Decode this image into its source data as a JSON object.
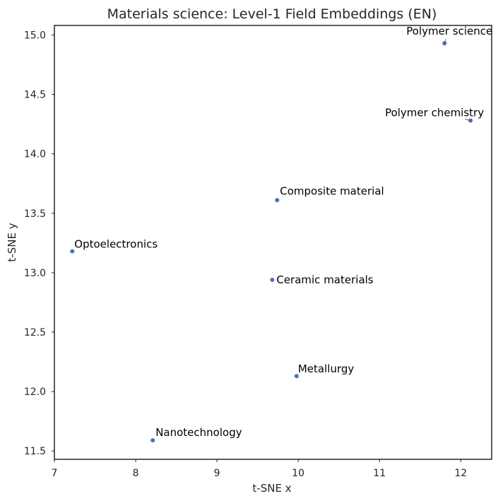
{
  "chart_data": {
    "type": "scatter",
    "title": "Materials science: Level-1 Field Embeddings (EN)",
    "xlabel": "t-SNE x",
    "ylabel": "t-SNE y",
    "xlim": [
      7.0,
      12.38
    ],
    "ylim": [
      11.43,
      15.08
    ],
    "xticks": [
      7,
      8,
      9,
      10,
      11,
      12
    ],
    "yticks": [
      11.5,
      12.0,
      12.5,
      13.0,
      13.5,
      14.0,
      14.5,
      15.0
    ],
    "xtick_labels": [
      "7",
      "8",
      "9",
      "10",
      "11",
      "12"
    ],
    "ytick_labels": [
      "11.5",
      "12.0",
      "12.5",
      "13.0",
      "13.5",
      "14.0",
      "14.5",
      "15.0"
    ],
    "grid": false,
    "point_color": "#4c72b0",
    "points": [
      {
        "label": "Polymer science",
        "x": 11.8,
        "y": 14.93
      },
      {
        "label": "Polymer chemistry",
        "x": 12.12,
        "y": 14.28
      },
      {
        "label": "Composite material",
        "x": 9.74,
        "y": 13.61
      },
      {
        "label": "Optoelectronics",
        "x": 7.22,
        "y": 13.18
      },
      {
        "label": "Ceramic materials",
        "x": 9.68,
        "y": 12.94
      },
      {
        "label": "Metallurgy",
        "x": 9.98,
        "y": 12.13
      },
      {
        "label": "Nanotechnology",
        "x": 8.21,
        "y": 11.59
      }
    ]
  }
}
